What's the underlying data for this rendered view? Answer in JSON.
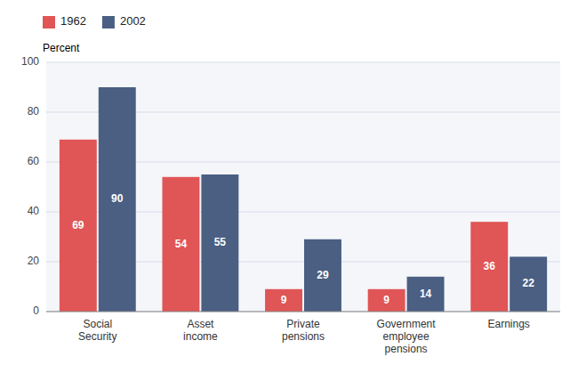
{
  "chart_data": {
    "type": "bar",
    "y_label": "Percent",
    "categories": [
      "Social\nSecurity",
      "Asset\nincome",
      "Private\npensions",
      "Government\nemployee\npensions",
      "Earnings"
    ],
    "series": [
      {
        "name": "1962",
        "color": "#e05555",
        "values": [
          69,
          54,
          9,
          9,
          36
        ]
      },
      {
        "name": "2002",
        "color": "#4a5f82",
        "values": [
          90,
          55,
          29,
          14,
          22
        ]
      }
    ],
    "ylim": [
      0,
      100
    ],
    "yticks": [
      0,
      20,
      40,
      60,
      80,
      100
    ],
    "grid": true,
    "data_labels": true,
    "legend": "upper left"
  }
}
